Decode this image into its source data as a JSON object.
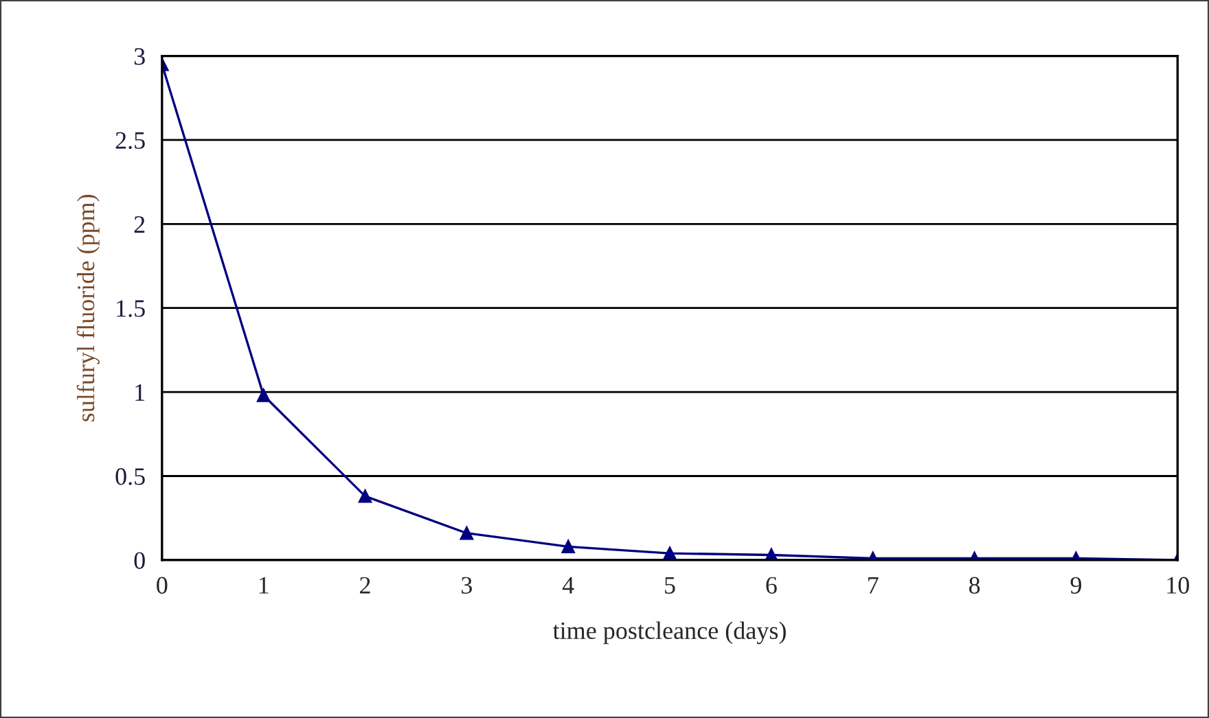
{
  "chart_data": {
    "type": "line",
    "xlabel": "time postcleance (days)",
    "ylabel": "sulfuryl fluoride (ppm)",
    "x": [
      0,
      1,
      2,
      3,
      4,
      5,
      6,
      7,
      8,
      9,
      10
    ],
    "series": [
      {
        "color": "#000080",
        "values": [
          2.95,
          0.98,
          0.38,
          0.16,
          0.08,
          0.04,
          0.03,
          0.01,
          0.01,
          0.01,
          0
        ]
      }
    ],
    "xlim": [
      0,
      10
    ],
    "xticks": [
      0,
      1,
      2,
      3,
      4,
      5,
      6,
      7,
      8,
      9,
      10
    ],
    "ylim": [
      0,
      3
    ],
    "yticks": [
      0,
      0.5,
      1,
      1.5,
      2,
      2.5,
      3
    ],
    "grid": "y",
    "marker": "triangle",
    "line_style": "solid"
  }
}
